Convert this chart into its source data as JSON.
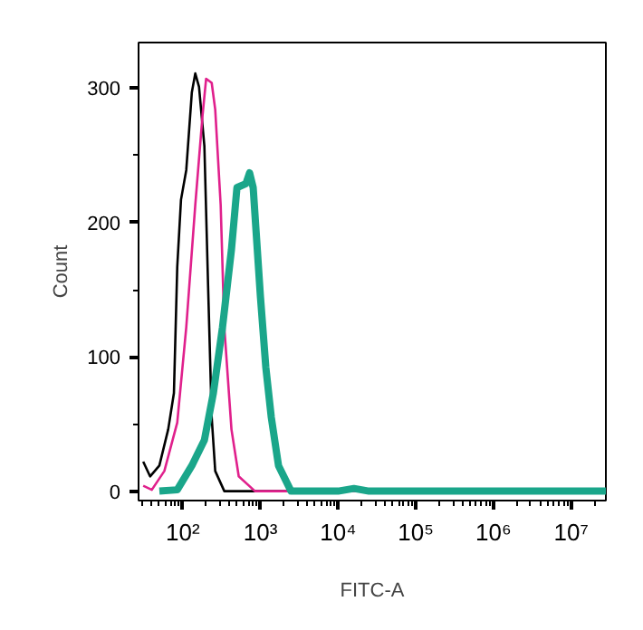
{
  "chart_data": {
    "type": "line",
    "xlabel": "FITC-A",
    "ylabel": "Count",
    "log": "x",
    "xlim": [
      27,
      28000000
    ],
    "ylim": [
      -7,
      334
    ],
    "xticks": [
      {
        "value": 100,
        "label": "10²"
      },
      {
        "value": 1000,
        "label": "10³"
      },
      {
        "value": 10000,
        "label": "10⁴"
      },
      {
        "value": 100000,
        "label": "10⁵"
      },
      {
        "value": 1000000,
        "label": "10⁶"
      },
      {
        "value": 10000000,
        "label": "10⁷"
      }
    ],
    "yticks": [
      0,
      100,
      200,
      300
    ],
    "grid": false,
    "marker": "none",
    "line_style": "solid",
    "series": [
      {
        "color": "#000000",
        "x": [
          31,
          38,
          50,
          65,
          77,
          85,
          95,
          111,
          131,
          145,
          162,
          190,
          212,
          236,
          262,
          343,
          499,
          28000000
        ],
        "values": [
          22,
          11,
          19,
          46,
          73,
          167,
          217,
          239,
          297,
          311,
          301,
          257,
          153,
          55,
          15,
          0,
          0,
          0
        ]
      },
      {
        "color": "#e0208c",
        "x": [
          31,
          40,
          58,
          85,
          111,
          145,
          180,
          200,
          236,
          262,
          308,
          343,
          424,
          526,
          851,
          2480,
          28000000
        ],
        "values": [
          4,
          1,
          15,
          51,
          122,
          213,
          280,
          307,
          304,
          284,
          213,
          122,
          46,
          11,
          0,
          0,
          0
        ]
      },
      {
        "color": "#1aa68a",
        "x": [
          50,
          85,
          131,
          190,
          248,
          325,
          424,
          499,
          652,
          725,
          807,
          1000,
          1175,
          1380,
          1710,
          2480,
          10000,
          16000,
          25000,
          28000000
        ],
        "values": [
          0,
          1,
          19,
          38,
          73,
          122,
          180,
          226,
          229,
          237,
          226,
          145,
          92,
          55,
          19,
          0,
          0,
          2,
          0,
          0
        ]
      }
    ]
  }
}
